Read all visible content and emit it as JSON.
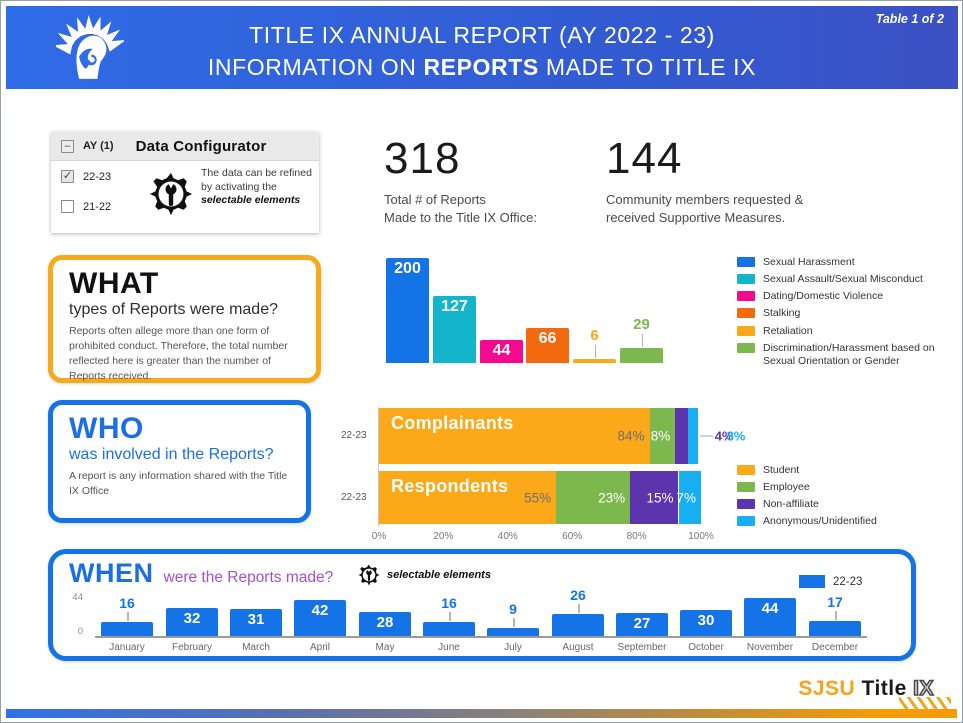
{
  "header": {
    "page_label": "Table 1 of 2",
    "title_line1": "TITLE IX ANNUAL REPORT (AY 2022 - 23)",
    "title_line2_prefix": "INFORMATION ON ",
    "title_line2_bold": "REPORTS",
    "title_line2_suffix": " MADE TO TITLE IX"
  },
  "configurator": {
    "group_label": "AY (1)",
    "title": "Data Configurator",
    "options": [
      {
        "label": "22-23",
        "checked": true
      },
      {
        "label": "21-22",
        "checked": false
      }
    ],
    "note_prefix": "The data can be refined by activating the ",
    "note_bold": "selectable elements"
  },
  "stats": [
    {
      "value": "318",
      "label": "Total # of Reports\nMade to the Title IX Office:"
    },
    {
      "value": "144",
      "label": "Community members requested &\nreceived Supportive Measures."
    }
  ],
  "sections": {
    "what": {
      "title": "WHAT",
      "subtitle": "types of Reports were made?",
      "body": "Reports often allege more than one form of prohibited conduct. Therefore, the total number reflected here is greater than the number of Reports received.",
      "border_color": "#F8A91B"
    },
    "who": {
      "title": "WHO",
      "subtitle": "was involved in the Reports?",
      "body": "A report is any information shared with the Title IX Office",
      "border_color": "#1473E6"
    },
    "when": {
      "title": "WHEN",
      "subtitle": "were the Reports made?",
      "note": "selectable elements",
      "legend_label": "22-23",
      "border_color": "#1473E6"
    }
  },
  "chart_data": [
    {
      "type": "bar",
      "name": "report-types",
      "title": "WHAT types of Reports were made?",
      "categories": [
        "Sexual Harassment",
        "Sexual Assault/Sexual Misconduct",
        "Dating/Domestic Violence",
        "Stalking",
        "Retaliation",
        "Discrimination/Harassment based on Sexual Orientation or Gender"
      ],
      "values": [
        200,
        127,
        44,
        66,
        6,
        29
      ],
      "colors": [
        "#1473E6",
        "#12B5C9",
        "#F5098E",
        "#F26A0D",
        "#FBA819",
        "#7CB84E"
      ],
      "ylim": [
        0,
        200
      ],
      "legend_position": "right",
      "label_inside_min": 40
    },
    {
      "type": "stacked-bar-horizontal",
      "name": "report-parties",
      "title": "WHO was involved in the Reports?",
      "rows": [
        {
          "category": "Complainants",
          "axis_label": "22-23",
          "values": [
            84,
            8,
            4,
            3
          ]
        },
        {
          "category": "Respondents",
          "axis_label": "22-23",
          "values": [
            55,
            23,
            15,
            7
          ]
        }
      ],
      "series": [
        "Student",
        "Employee",
        "Non-affiliate",
        "Anonymous/Unidentified"
      ],
      "colors": [
        "#FBA819",
        "#7CB84E",
        "#5B34AE",
        "#18AEF2"
      ],
      "x_ticks": [
        "0%",
        "20%",
        "40%",
        "60%",
        "80%",
        "100%"
      ],
      "xlim": [
        0,
        100
      ],
      "value_suffix": "%",
      "legend_position": "right",
      "label_outside_max": 5,
      "first_label_color": "#6f6f6f"
    },
    {
      "type": "bar",
      "name": "reports-by-month",
      "title": "WHEN were the Reports made?",
      "categories": [
        "January",
        "February",
        "March",
        "April",
        "May",
        "June",
        "July",
        "August",
        "September",
        "October",
        "November",
        "December"
      ],
      "values": [
        16,
        32,
        31,
        42,
        28,
        16,
        9,
        26,
        27,
        30,
        44,
        17
      ],
      "color": "#1473E6",
      "ylim": [
        0,
        44
      ],
      "y_ticks": [
        "44",
        "0"
      ],
      "legend": "22-23",
      "label_inside_min": 27
    }
  ],
  "footer": {
    "brand_primary": "SJSU",
    "brand_secondary": "Title",
    "brand_tertiary": "IX"
  }
}
